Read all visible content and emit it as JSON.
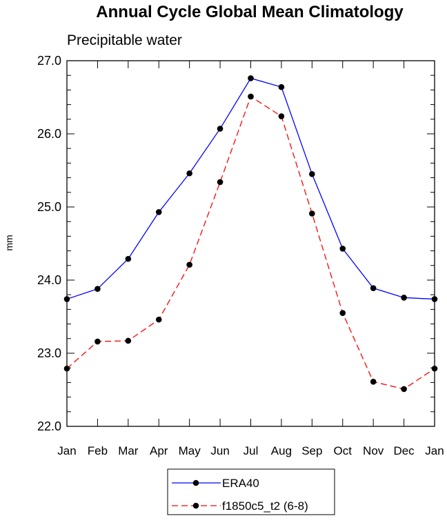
{
  "chart_data": {
    "type": "line",
    "title": "Annual Cycle Global Mean Climatology",
    "subtitle": "Precipitable water",
    "ylabel": "mm",
    "xlabel": "",
    "ylim": [
      22.0,
      27.0
    ],
    "yticks": [
      "22.0",
      "23.0",
      "24.0",
      "25.0",
      "26.0",
      "27.0"
    ],
    "yticks_values": [
      22.0,
      23.0,
      24.0,
      25.0,
      26.0,
      27.0
    ],
    "categories": [
      "Jan",
      "Feb",
      "Mar",
      "Apr",
      "May",
      "Jun",
      "Jul",
      "Aug",
      "Sep",
      "Oct",
      "Nov",
      "Dec",
      "Jan"
    ],
    "grid": false,
    "legend_position": "bottom",
    "series": [
      {
        "name": "ERA40",
        "color": "#0000ff",
        "dash": "solid",
        "values": [
          23.74,
          23.88,
          24.29,
          24.93,
          25.46,
          26.07,
          26.76,
          26.64,
          25.45,
          24.43,
          23.89,
          23.76,
          23.74
        ]
      },
      {
        "name": "f1850c5_t2 (6-8)",
        "color": "#ff0000",
        "dash": "dashed",
        "values": [
          22.79,
          23.16,
          23.17,
          23.46,
          24.21,
          25.34,
          26.51,
          26.24,
          24.91,
          23.55,
          22.61,
          22.51,
          22.79
        ]
      }
    ]
  }
}
